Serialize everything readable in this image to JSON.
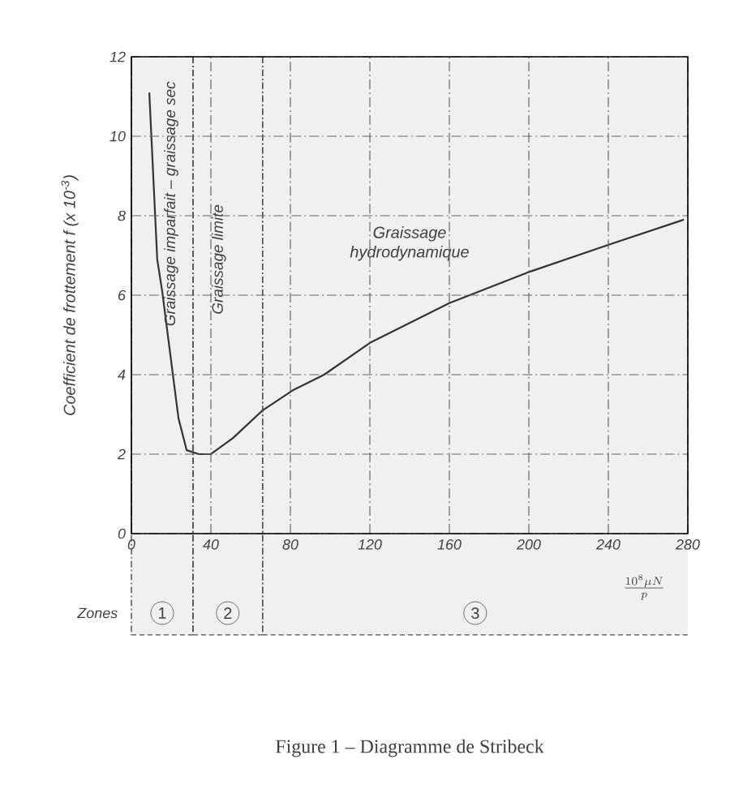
{
  "chart_data": {
    "type": "line",
    "xlabel": "\\frac{10^{8}\\mu N}{p}",
    "ylabel": "Coefficient de frottement f (x 10$^{-3}$)",
    "series": [
      {
        "color": "#333333",
        "x": [
          9,
          13,
          15.5,
          23.7,
          27.8,
          34,
          40,
          51,
          66,
          81,
          97,
          120,
          160,
          201,
          242,
          278
        ],
        "values": [
          11.1,
          6.9,
          6.1,
          2.9,
          2.1,
          2.0,
          2.0,
          2.4,
          3.1,
          3.6,
          4.0,
          4.8,
          5.8,
          6.6,
          7.3,
          7.9
        ]
      }
    ],
    "xlim": [
      0,
      280
    ],
    "ylim": [
      0,
      12
    ],
    "xticks": [
      0,
      40,
      80,
      120,
      160,
      200,
      240,
      280
    ],
    "yticks": [
      0,
      2,
      4,
      6,
      8,
      10,
      12
    ],
    "grid": true,
    "bands": [
      {
        "axis": "x",
        "from": 0,
        "to": 31,
        "label": "1",
        "color": "#f0f0f0"
      },
      {
        "axis": "x",
        "from": 31,
        "to": 66,
        "label": "2",
        "color": "#f0f0f0"
      },
      {
        "axis": "x",
        "from": 66,
        "to": 280,
        "label": "3",
        "color": "#f0f0f0"
      }
    ],
    "annotations": [
      "Zones",
      "Graissage imparfait – graissage sec",
      "Graissage limite",
      "Graissage hydrodynamique",
      "Figure 1 – Diagramme de Stribeck"
    ]
  }
}
